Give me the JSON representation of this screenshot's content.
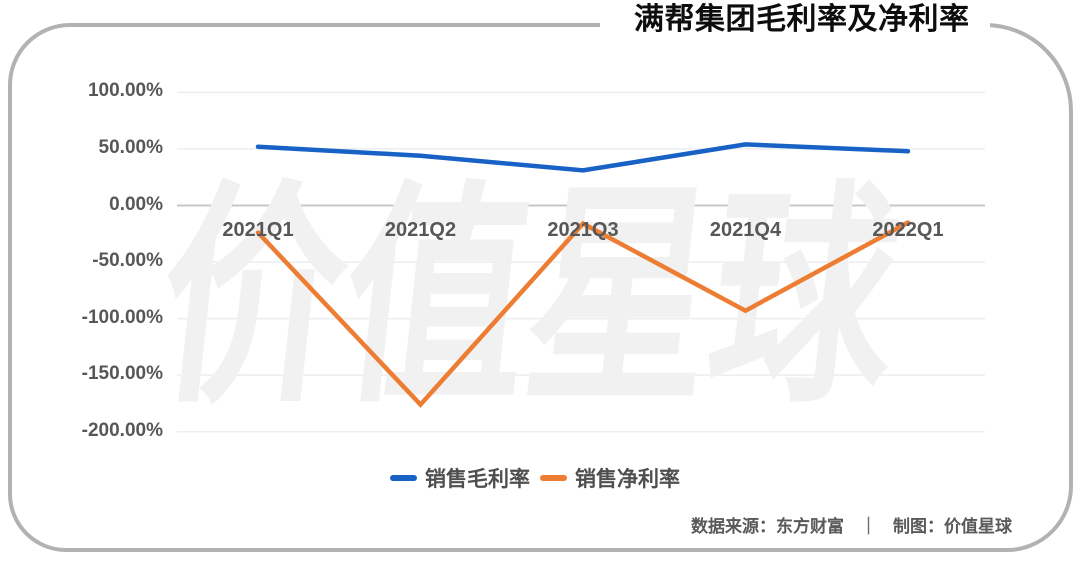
{
  "watermark": {
    "text": "价值星球"
  },
  "chart_data": {
    "type": "line",
    "title": "满帮集团毛利率及净利率",
    "categories": [
      "2021Q1",
      "2021Q2",
      "2021Q3",
      "2021Q4",
      "2022Q1"
    ],
    "series": [
      {
        "key": "gross-margin",
        "name": "销售毛利率",
        "color": "#1862c6",
        "values": [
          52,
          44,
          31,
          54,
          48
        ]
      },
      {
        "key": "net-margin",
        "name": "销售净利率",
        "color": "#ec7d33",
        "values": [
          -24,
          -176,
          -16,
          -93,
          -15
        ]
      }
    ],
    "units": "%",
    "ylim": [
      -200,
      100
    ],
    "grid": true,
    "legend_position": "bottom",
    "y_axis": {
      "ticks": [
        {
          "label": "100.00%",
          "value": 100
        },
        {
          "label": "50.00%",
          "value": 50
        },
        {
          "label": "0.00%",
          "value": 0
        },
        {
          "label": "-50.00%",
          "value": -50
        },
        {
          "label": "-100.00%",
          "value": -100
        },
        {
          "label": "-150.00%",
          "value": -150
        },
        {
          "label": "-200.00%",
          "value": -200
        }
      ]
    },
    "gridline_color": "#ebedf0",
    "zero_line_color": "#c7c7c7",
    "axis_label_color": "#575757"
  },
  "footer": {
    "source": "数据来源：东方财富",
    "separator": "｜",
    "credit": "制图：价值星球"
  }
}
